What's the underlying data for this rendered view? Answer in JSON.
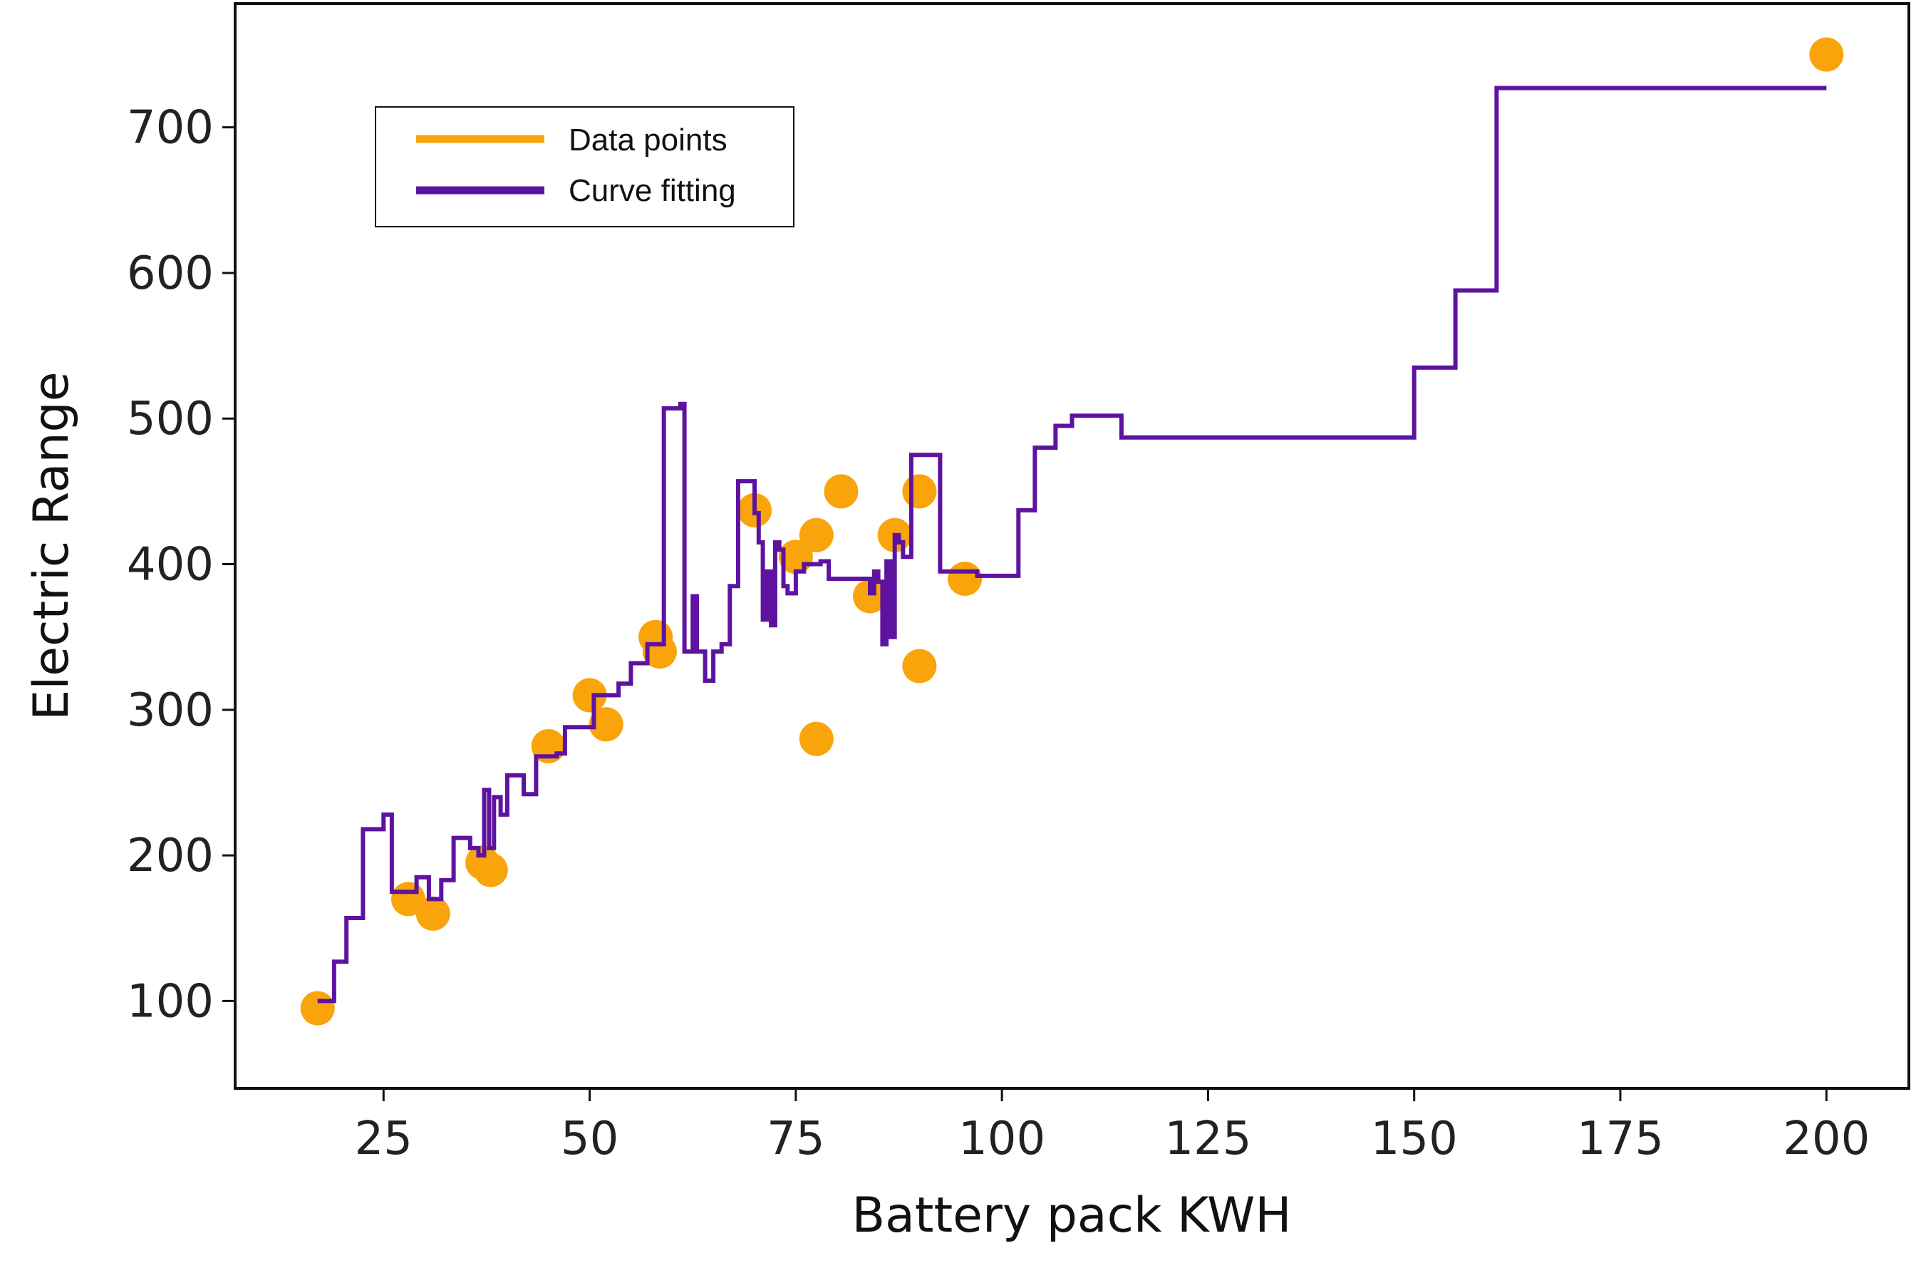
{
  "chart_data": {
    "type": "scatter",
    "title": "",
    "xlabel": "Battery pack KWH",
    "ylabel": "Electric Range",
    "xlim": [
      7,
      210
    ],
    "ylim": [
      40,
      785
    ],
    "x_ticks": [
      25,
      50,
      75,
      100,
      125,
      150,
      175,
      200
    ],
    "y_ticks": [
      100,
      200,
      300,
      400,
      500,
      600,
      700
    ],
    "grid": false,
    "legend": {
      "position": "top-left"
    },
    "colors": {
      "data_points": "#F9A40B",
      "curve": "#5E13A0"
    },
    "series": [
      {
        "name": "Data points",
        "kind": "scatter",
        "color": "#F9A40B",
        "points": [
          [
            17,
            95
          ],
          [
            28,
            170
          ],
          [
            31,
            160
          ],
          [
            37,
            195
          ],
          [
            38,
            190
          ],
          [
            45,
            275
          ],
          [
            50,
            310
          ],
          [
            52,
            290
          ],
          [
            58,
            350
          ],
          [
            58.5,
            340
          ],
          [
            70,
            437
          ],
          [
            75,
            405
          ],
          [
            77.5,
            420
          ],
          [
            77.5,
            280
          ],
          [
            80.5,
            450
          ],
          [
            84,
            378
          ],
          [
            87,
            420
          ],
          [
            90,
            450
          ],
          [
            90,
            330
          ],
          [
            95.5,
            390
          ],
          [
            200,
            750
          ]
        ]
      },
      {
        "name": "Curve fitting",
        "kind": "step",
        "color": "#5E13A0",
        "points": [
          [
            17,
            100
          ],
          [
            19,
            100
          ],
          [
            19,
            127
          ],
          [
            20.5,
            127
          ],
          [
            20.5,
            157
          ],
          [
            22.5,
            157
          ],
          [
            22.5,
            218
          ],
          [
            25,
            218
          ],
          [
            25,
            228
          ],
          [
            26,
            228
          ],
          [
            26,
            175
          ],
          [
            29,
            175
          ],
          [
            29,
            185
          ],
          [
            30.5,
            185
          ],
          [
            30.5,
            170
          ],
          [
            32,
            170
          ],
          [
            32,
            183
          ],
          [
            33.5,
            183
          ],
          [
            33.5,
            212
          ],
          [
            35.5,
            212
          ],
          [
            35.5,
            205
          ],
          [
            36.5,
            205
          ],
          [
            36.5,
            200
          ],
          [
            37.2,
            200
          ],
          [
            37.2,
            245
          ],
          [
            37.8,
            245
          ],
          [
            37.8,
            205
          ],
          [
            38.4,
            205
          ],
          [
            38.4,
            240
          ],
          [
            39.2,
            240
          ],
          [
            39.2,
            228
          ],
          [
            40,
            228
          ],
          [
            40,
            255
          ],
          [
            42,
            255
          ],
          [
            42,
            242
          ],
          [
            43.5,
            242
          ],
          [
            43.5,
            268
          ],
          [
            46,
            268
          ],
          [
            46,
            270
          ],
          [
            47,
            270
          ],
          [
            47,
            288
          ],
          [
            50.5,
            288
          ],
          [
            50.5,
            310
          ],
          [
            53.5,
            310
          ],
          [
            53.5,
            318
          ],
          [
            55,
            318
          ],
          [
            55,
            332
          ],
          [
            57,
            332
          ],
          [
            57,
            345
          ],
          [
            59,
            345
          ],
          [
            59,
            507
          ],
          [
            61,
            507
          ],
          [
            61,
            510
          ],
          [
            61.5,
            510
          ],
          [
            61.5,
            340
          ],
          [
            62.5,
            340
          ],
          [
            62.5,
            378
          ],
          [
            63,
            378
          ],
          [
            63,
            340
          ],
          [
            64,
            340
          ],
          [
            64,
            320
          ],
          [
            65,
            320
          ],
          [
            65,
            340
          ],
          [
            66,
            340
          ],
          [
            66,
            345
          ],
          [
            67,
            345
          ],
          [
            67,
            385
          ],
          [
            68,
            385
          ],
          [
            68,
            457
          ],
          [
            70,
            457
          ],
          [
            70,
            435
          ],
          [
            70.5,
            435
          ],
          [
            70.5,
            415
          ],
          [
            71,
            415
          ],
          [
            71,
            362
          ],
          [
            71.5,
            362
          ],
          [
            71.5,
            395
          ],
          [
            72,
            395
          ],
          [
            72,
            358
          ],
          [
            72.5,
            358
          ],
          [
            72.5,
            415
          ],
          [
            73,
            415
          ],
          [
            73,
            410
          ],
          [
            73.5,
            410
          ],
          [
            73.5,
            385
          ],
          [
            74,
            385
          ],
          [
            74,
            380
          ],
          [
            75,
            380
          ],
          [
            75,
            395
          ],
          [
            76,
            395
          ],
          [
            76,
            400
          ],
          [
            78,
            400
          ],
          [
            78,
            402
          ],
          [
            79,
            402
          ],
          [
            79,
            390
          ],
          [
            84,
            390
          ],
          [
            84,
            380
          ],
          [
            84.5,
            380
          ],
          [
            84.5,
            395
          ],
          [
            85,
            395
          ],
          [
            85,
            388
          ],
          [
            85.5,
            388
          ],
          [
            85.5,
            345
          ],
          [
            86,
            345
          ],
          [
            86,
            402
          ],
          [
            86.5,
            402
          ],
          [
            86.5,
            350
          ],
          [
            87,
            350
          ],
          [
            87,
            420
          ],
          [
            87.5,
            420
          ],
          [
            87.5,
            415
          ],
          [
            88,
            415
          ],
          [
            88,
            405
          ],
          [
            89,
            405
          ],
          [
            89,
            475
          ],
          [
            92.5,
            475
          ],
          [
            92.5,
            395
          ],
          [
            97,
            395
          ],
          [
            97,
            392
          ],
          [
            102,
            392
          ],
          [
            102,
            437
          ],
          [
            104,
            437
          ],
          [
            104,
            480
          ],
          [
            106.5,
            480
          ],
          [
            106.5,
            495
          ],
          [
            108.5,
            495
          ],
          [
            108.5,
            502
          ],
          [
            114.5,
            502
          ],
          [
            114.5,
            487
          ],
          [
            150,
            487
          ],
          [
            150,
            535
          ],
          [
            155,
            535
          ],
          [
            155,
            588
          ],
          [
            160,
            588
          ],
          [
            160,
            727
          ],
          [
            200,
            727
          ]
        ]
      }
    ]
  }
}
